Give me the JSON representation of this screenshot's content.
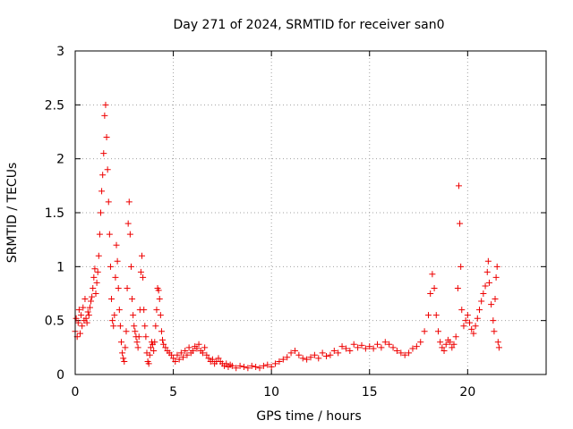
{
  "chart_data": {
    "type": "scatter",
    "title": "Day 271 of 2024, SRMTID for receiver san0",
    "xlabel": "GPS time / hours",
    "ylabel": "SRMTID / TECUs",
    "xlim": [
      0,
      24
    ],
    "ylim": [
      0,
      3
    ],
    "xticks": [
      0,
      5,
      10,
      15,
      20
    ],
    "yticks": [
      0,
      0.5,
      1,
      1.5,
      2,
      2.5,
      3
    ],
    "xtick_labels": [
      "0",
      "5",
      "10",
      "15",
      "20"
    ],
    "ytick_labels": [
      "0",
      "0.5",
      "1",
      "1.5",
      "2",
      "2.5",
      "3"
    ],
    "grid": true,
    "marker": "+",
    "color": "#ee0000",
    "series": [
      {
        "name": "san0",
        "points": [
          [
            0.0,
            0.4
          ],
          [
            0.05,
            0.52
          ],
          [
            0.1,
            0.35
          ],
          [
            0.15,
            0.48
          ],
          [
            0.2,
            0.6
          ],
          [
            0.25,
            0.38
          ],
          [
            0.3,
            0.55
          ],
          [
            0.35,
            0.45
          ],
          [
            0.4,
            0.62
          ],
          [
            0.45,
            0.5
          ],
          [
            0.5,
            0.7
          ],
          [
            0.55,
            0.52
          ],
          [
            0.6,
            0.48
          ],
          [
            0.65,
            0.58
          ],
          [
            0.7,
            0.55
          ],
          [
            0.75,
            0.62
          ],
          [
            0.8,
            0.68
          ],
          [
            0.85,
            0.72
          ],
          [
            0.9,
            0.8
          ],
          [
            0.95,
            0.9
          ],
          [
            1.0,
            0.98
          ],
          [
            1.05,
            0.75
          ],
          [
            1.1,
            0.85
          ],
          [
            1.15,
            0.95
          ],
          [
            1.2,
            1.1
          ],
          [
            1.25,
            1.3
          ],
          [
            1.3,
            1.5
          ],
          [
            1.35,
            1.7
          ],
          [
            1.4,
            1.85
          ],
          [
            1.45,
            2.05
          ],
          [
            1.5,
            2.4
          ],
          [
            1.55,
            2.5
          ],
          [
            1.6,
            2.2
          ],
          [
            1.65,
            1.9
          ],
          [
            1.7,
            1.6
          ],
          [
            1.75,
            1.3
          ],
          [
            1.8,
            1.0
          ],
          [
            1.85,
            0.7
          ],
          [
            1.9,
            0.5
          ],
          [
            1.95,
            0.45
          ],
          [
            2.0,
            0.55
          ],
          [
            2.05,
            0.9
          ],
          [
            2.1,
            1.2
          ],
          [
            2.15,
            1.05
          ],
          [
            2.2,
            0.8
          ],
          [
            2.25,
            0.6
          ],
          [
            2.3,
            0.45
          ],
          [
            2.35,
            0.3
          ],
          [
            2.4,
            0.2
          ],
          [
            2.45,
            0.15
          ],
          [
            2.5,
            0.12
          ],
          [
            2.55,
            0.25
          ],
          [
            2.6,
            0.4
          ],
          [
            2.65,
            0.8
          ],
          [
            2.7,
            1.4
          ],
          [
            2.75,
            1.6
          ],
          [
            2.8,
            1.3
          ],
          [
            2.85,
            1.0
          ],
          [
            2.9,
            0.7
          ],
          [
            2.95,
            0.55
          ],
          [
            3.0,
            0.45
          ],
          [
            3.05,
            0.4
          ],
          [
            3.1,
            0.35
          ],
          [
            3.15,
            0.3
          ],
          [
            3.2,
            0.25
          ],
          [
            3.25,
            0.35
          ],
          [
            3.3,
            0.6
          ],
          [
            3.35,
            0.95
          ],
          [
            3.4,
            1.1
          ],
          [
            3.45,
            0.9
          ],
          [
            3.5,
            0.6
          ],
          [
            3.55,
            0.45
          ],
          [
            3.6,
            0.35
          ],
          [
            3.65,
            0.2
          ],
          [
            3.7,
            0.12
          ],
          [
            3.75,
            0.1
          ],
          [
            3.8,
            0.18
          ],
          [
            3.85,
            0.25
          ],
          [
            3.9,
            0.3
          ],
          [
            3.95,
            0.28
          ],
          [
            4.0,
            0.22
          ],
          [
            4.05,
            0.3
          ],
          [
            4.1,
            0.45
          ],
          [
            4.15,
            0.6
          ],
          [
            4.2,
            0.8
          ],
          [
            4.25,
            0.78
          ],
          [
            4.3,
            0.7
          ],
          [
            4.35,
            0.55
          ],
          [
            4.4,
            0.4
          ],
          [
            4.45,
            0.32
          ],
          [
            4.5,
            0.28
          ],
          [
            4.6,
            0.25
          ],
          [
            4.7,
            0.22
          ],
          [
            4.8,
            0.2
          ],
          [
            4.9,
            0.18
          ],
          [
            5.0,
            0.15
          ],
          [
            5.1,
            0.12
          ],
          [
            5.2,
            0.18
          ],
          [
            5.3,
            0.14
          ],
          [
            5.4,
            0.2
          ],
          [
            5.5,
            0.16
          ],
          [
            5.6,
            0.22
          ],
          [
            5.7,
            0.18
          ],
          [
            5.8,
            0.25
          ],
          [
            5.9,
            0.2
          ],
          [
            6.0,
            0.22
          ],
          [
            6.1,
            0.26
          ],
          [
            6.2,
            0.24
          ],
          [
            6.3,
            0.28
          ],
          [
            6.4,
            0.22
          ],
          [
            6.5,
            0.2
          ],
          [
            6.6,
            0.25
          ],
          [
            6.7,
            0.18
          ],
          [
            6.8,
            0.15
          ],
          [
            6.9,
            0.12
          ],
          [
            7.0,
            0.14
          ],
          [
            7.1,
            0.1
          ],
          [
            7.2,
            0.12
          ],
          [
            7.3,
            0.15
          ],
          [
            7.4,
            0.12
          ],
          [
            7.5,
            0.1
          ],
          [
            7.6,
            0.08
          ],
          [
            7.7,
            0.1
          ],
          [
            7.8,
            0.07
          ],
          [
            7.9,
            0.09
          ],
          [
            8.0,
            0.08
          ],
          [
            8.2,
            0.06
          ],
          [
            8.4,
            0.08
          ],
          [
            8.6,
            0.07
          ],
          [
            8.8,
            0.06
          ],
          [
            9.0,
            0.08
          ],
          [
            9.2,
            0.07
          ],
          [
            9.4,
            0.06
          ],
          [
            9.6,
            0.08
          ],
          [
            9.8,
            0.09
          ],
          [
            10.0,
            0.07
          ],
          [
            10.2,
            0.1
          ],
          [
            10.4,
            0.12
          ],
          [
            10.6,
            0.14
          ],
          [
            10.8,
            0.16
          ],
          [
            11.0,
            0.2
          ],
          [
            11.2,
            0.22
          ],
          [
            11.4,
            0.18
          ],
          [
            11.6,
            0.15
          ],
          [
            11.8,
            0.14
          ],
          [
            12.0,
            0.16
          ],
          [
            12.2,
            0.18
          ],
          [
            12.4,
            0.15
          ],
          [
            12.6,
            0.2
          ],
          [
            12.8,
            0.17
          ],
          [
            13.0,
            0.18
          ],
          [
            13.2,
            0.22
          ],
          [
            13.4,
            0.2
          ],
          [
            13.6,
            0.26
          ],
          [
            13.8,
            0.24
          ],
          [
            14.0,
            0.22
          ],
          [
            14.2,
            0.28
          ],
          [
            14.4,
            0.25
          ],
          [
            14.6,
            0.27
          ],
          [
            14.8,
            0.24
          ],
          [
            15.0,
            0.26
          ],
          [
            15.2,
            0.24
          ],
          [
            15.4,
            0.28
          ],
          [
            15.6,
            0.25
          ],
          [
            15.8,
            0.3
          ],
          [
            16.0,
            0.28
          ],
          [
            16.2,
            0.25
          ],
          [
            16.4,
            0.22
          ],
          [
            16.6,
            0.2
          ],
          [
            16.8,
            0.18
          ],
          [
            17.0,
            0.2
          ],
          [
            17.2,
            0.24
          ],
          [
            17.4,
            0.26
          ],
          [
            17.6,
            0.3
          ],
          [
            17.8,
            0.4
          ],
          [
            18.0,
            0.55
          ],
          [
            18.1,
            0.75
          ],
          [
            18.2,
            0.93
          ],
          [
            18.3,
            0.8
          ],
          [
            18.4,
            0.55
          ],
          [
            18.5,
            0.4
          ],
          [
            18.6,
            0.3
          ],
          [
            18.7,
            0.25
          ],
          [
            18.8,
            0.22
          ],
          [
            18.9,
            0.28
          ],
          [
            19.0,
            0.32
          ],
          [
            19.1,
            0.3
          ],
          [
            19.2,
            0.25
          ],
          [
            19.3,
            0.28
          ],
          [
            19.4,
            0.35
          ],
          [
            19.5,
            0.8
          ],
          [
            19.55,
            1.75
          ],
          [
            19.6,
            1.4
          ],
          [
            19.65,
            1.0
          ],
          [
            19.7,
            0.6
          ],
          [
            19.8,
            0.45
          ],
          [
            19.9,
            0.5
          ],
          [
            20.0,
            0.55
          ],
          [
            20.1,
            0.48
          ],
          [
            20.2,
            0.42
          ],
          [
            20.3,
            0.38
          ],
          [
            20.4,
            0.45
          ],
          [
            20.5,
            0.52
          ],
          [
            20.6,
            0.6
          ],
          [
            20.7,
            0.68
          ],
          [
            20.8,
            0.75
          ],
          [
            20.9,
            0.82
          ],
          [
            21.0,
            0.95
          ],
          [
            21.05,
            1.05
          ],
          [
            21.1,
            0.85
          ],
          [
            21.2,
            0.65
          ],
          [
            21.3,
            0.5
          ],
          [
            21.35,
            0.4
          ],
          [
            21.4,
            0.7
          ],
          [
            21.45,
            0.9
          ],
          [
            21.5,
            1.0
          ],
          [
            21.55,
            0.3
          ],
          [
            21.6,
            0.25
          ]
        ]
      }
    ]
  }
}
